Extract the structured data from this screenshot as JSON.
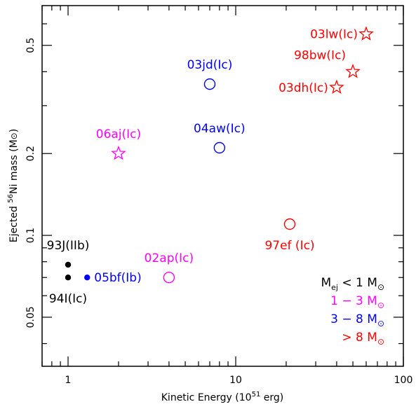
{
  "chart_data": {
    "type": "scatter",
    "xlabel": "Kinetic Energy (10",
    "xlabel_sup": "51",
    "xlabel_tail": " erg)",
    "ylabel_pre": "Ejected ",
    "ylabel_sup": "56",
    "ylabel_mid": "Ni mass (M",
    "ylabel_tail": ")",
    "xscale": "log",
    "yscale": "log",
    "xlim": [
      0.7,
      100
    ],
    "ylim": [
      0.033,
      0.7
    ],
    "x_ticks": [
      {
        "value": 1,
        "label": "1"
      },
      {
        "value": 10,
        "label": "10"
      },
      {
        "value": 100,
        "label": "100"
      }
    ],
    "y_ticks": [
      {
        "value": 0.05,
        "label": "0.05"
      },
      {
        "value": 0.1,
        "label": "0.1"
      },
      {
        "value": 0.2,
        "label": "0.2"
      },
      {
        "value": 0.5,
        "label": "0.5"
      }
    ],
    "colors": {
      "black": "#000000",
      "magenta": "#ff00ff",
      "blue": "#0000ff",
      "red": "#ff0000"
    },
    "points": [
      {
        "name": "93J(IIb)",
        "x": 1.0,
        "y": 0.078,
        "marker": "dot",
        "color": "black",
        "label": "93J(IIb)",
        "label_pos": "above"
      },
      {
        "name": "94I(Ic)",
        "x": 1.0,
        "y": 0.07,
        "marker": "dot",
        "color": "black",
        "label": "94I(Ic)",
        "label_pos": "below"
      },
      {
        "name": "05bf(Ib)",
        "x": 1.3,
        "y": 0.07,
        "marker": "dot",
        "color": "blue",
        "label": "05bf(Ib)",
        "label_pos": "right"
      },
      {
        "name": "02ap(Ic)",
        "x": 4.0,
        "y": 0.07,
        "marker": "circle",
        "color": "magenta",
        "label": "02ap(Ic)",
        "label_pos": "above"
      },
      {
        "name": "06aj(Ic)",
        "x": 2.0,
        "y": 0.2,
        "marker": "star",
        "color": "magenta",
        "label": "06aj(Ic)",
        "label_pos": "above"
      },
      {
        "name": "04aw(Ic)",
        "x": 8.0,
        "y": 0.21,
        "marker": "circle",
        "color": "blue",
        "label": "04aw(Ic)",
        "label_pos": "above"
      },
      {
        "name": "03jd(Ic)",
        "x": 7.0,
        "y": 0.36,
        "marker": "circle",
        "color": "blue",
        "label": "03jd(Ic)",
        "label_pos": "above"
      },
      {
        "name": "97ef (Ic)",
        "x": 21.0,
        "y": 0.11,
        "marker": "circle",
        "color": "red",
        "label": "97ef (Ic)",
        "label_pos": "below"
      },
      {
        "name": "03dh(Ic)",
        "x": 40.0,
        "y": 0.35,
        "marker": "star",
        "color": "red",
        "label": "03dh(Ic)",
        "label_pos": "left"
      },
      {
        "name": "98bw(Ic)",
        "x": 50.0,
        "y": 0.4,
        "marker": "star",
        "color": "red",
        "label": "98bw(Ic)",
        "label_pos": "aboveleft"
      },
      {
        "name": "03lw(Ic)",
        "x": 60.0,
        "y": 0.55,
        "marker": "star",
        "color": "red",
        "label": "03lw(Ic)",
        "label_pos": "left"
      }
    ],
    "legend": {
      "placement": "bottom-right",
      "entries": [
        {
          "symbol": "M",
          "sub": "ej",
          "text": " < 1 M",
          "color": "black"
        },
        {
          "symbol": "",
          "sub": "",
          "text": "1 − 3 M",
          "color": "magenta"
        },
        {
          "symbol": "",
          "sub": "",
          "text": "3 − 8 M",
          "color": "blue"
        },
        {
          "symbol": "",
          "sub": "",
          "text": "> 8 M",
          "color": "red"
        }
      ]
    }
  }
}
